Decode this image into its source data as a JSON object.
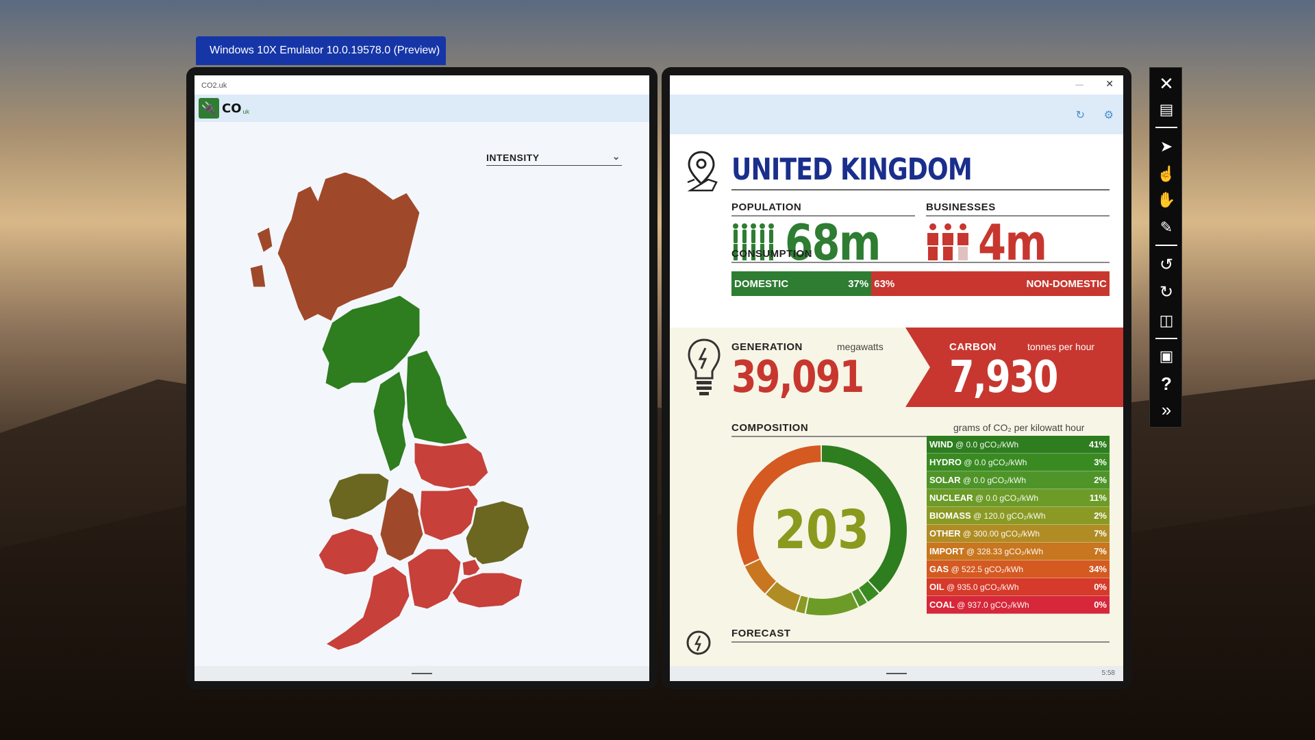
{
  "emulator": {
    "title": "Windows 10X Emulator 10.0.19578.0 (Preview)"
  },
  "left_app": {
    "window_title": "CO2.uk",
    "logo_text": "CO",
    "logo_sub": "uk",
    "dropdown_value": "INTENSITY",
    "regions": [
      {
        "name": "north-scotland",
        "color": "#a0492a"
      },
      {
        "name": "south-scotland",
        "color": "#2e7d1f"
      },
      {
        "name": "north-west-england",
        "color": "#2e7d1f"
      },
      {
        "name": "north-east-england",
        "color": "#2e7d1f"
      },
      {
        "name": "yorkshire",
        "color": "#c7403a"
      },
      {
        "name": "north-wales",
        "color": "#6b6620"
      },
      {
        "name": "west-midlands",
        "color": "#a0492a"
      },
      {
        "name": "east-midlands",
        "color": "#c7403a"
      },
      {
        "name": "east-england",
        "color": "#6b6620"
      },
      {
        "name": "south-wales",
        "color": "#c7403a"
      },
      {
        "name": "south-west-england",
        "color": "#c7403a"
      },
      {
        "name": "south-england",
        "color": "#c7403a"
      },
      {
        "name": "london",
        "color": "#c7403a"
      },
      {
        "name": "south-east-england",
        "color": "#c7403a"
      }
    ]
  },
  "right_app": {
    "country": "UNITED KINGDOM",
    "population": {
      "label": "POPULATION",
      "value": "68m"
    },
    "businesses": {
      "label": "BUSINESSES",
      "value": "4m"
    },
    "consumption": {
      "label": "CONSUMPTION",
      "domestic_label": "DOMESTIC",
      "domestic_pct": "37%",
      "domestic_fraction": 0.37,
      "non_domestic_label": "NON-DOMESTIC",
      "non_domestic_pct": "63%"
    },
    "generation": {
      "label": "GENERATION",
      "unit": "megawatts",
      "value": "39,091"
    },
    "carbon": {
      "label": "CARBON",
      "unit": "tonnes per hour",
      "value": "7,930"
    },
    "composition": {
      "label": "COMPOSITION",
      "unit": "grams of CO₂ per kilowatt hour",
      "intensity": "203",
      "rows": [
        {
          "name": "WIND",
          "rate": "@ 0.0 gCO₂/kWh",
          "pct": "41%",
          "share": 41,
          "color": "#2e7d1f"
        },
        {
          "name": "HYDRO",
          "rate": "@ 0.0 gCO₂/kWh",
          "pct": "3%",
          "share": 3,
          "color": "#3a8a22"
        },
        {
          "name": "SOLAR",
          "rate": "@ 0.0 gCO₂/kWh",
          "pct": "2%",
          "share": 2,
          "color": "#4f9428"
        },
        {
          "name": "NUCLEAR",
          "rate": "@ 0.0 gCO₂/kWh",
          "pct": "11%",
          "share": 11,
          "color": "#6d9b28"
        },
        {
          "name": "BIOMASS",
          "rate": "@ 120.0 gCO₂/kWh",
          "pct": "2%",
          "share": 2,
          "color": "#8a9a24"
        },
        {
          "name": "OTHER",
          "rate": "@ 300.00 gCO₂/kWh",
          "pct": "7%",
          "share": 7,
          "color": "#b08c24"
        },
        {
          "name": "IMPORT",
          "rate": "@ 328.33 gCO₂/kWh",
          "pct": "7%",
          "share": 7,
          "color": "#c8761f"
        },
        {
          "name": "GAS",
          "rate": "@ 522.5 gCO₂/kWh",
          "pct": "34%",
          "share": 34,
          "color": "#d45a22"
        },
        {
          "name": "OIL",
          "rate": "@ 935.0 gCO₂/kWh",
          "pct": "0%",
          "share": 0,
          "color": "#d63a2a"
        },
        {
          "name": "COAL",
          "rate": "@ 937.0 gCO₂/kWh",
          "pct": "0%",
          "share": 0,
          "color": "#d6283a"
        }
      ]
    },
    "forecast": {
      "label": "FORECAST"
    },
    "status_time": "5:58"
  },
  "toolbar": {
    "items": [
      "close-icon",
      "minimize-icon",
      "pointer-icon",
      "single-touch-icon",
      "multi-touch-icon",
      "pen-icon",
      "rotate-left-icon",
      "rotate-right-icon",
      "dual-screen-icon",
      "screenshot-icon",
      "help-icon",
      "more-tools-icon"
    ]
  }
}
